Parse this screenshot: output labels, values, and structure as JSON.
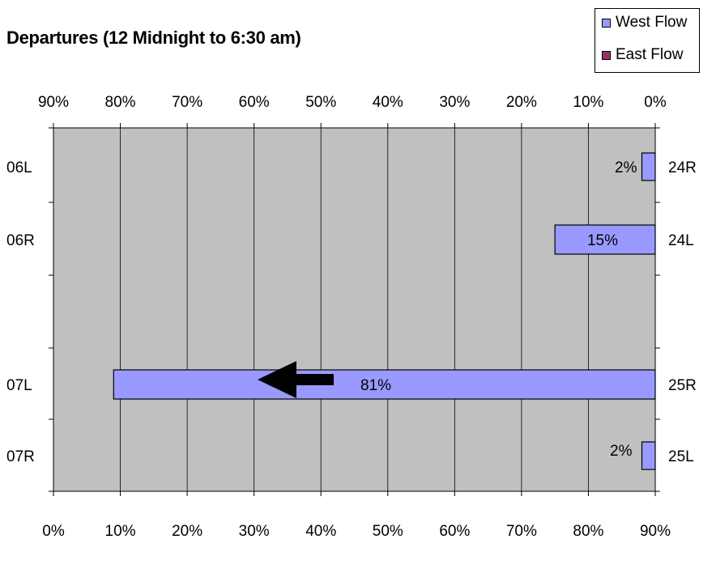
{
  "chart_data": {
    "type": "bar",
    "orientation": "horizontal",
    "title": "Departures (12 Midnight to 6:30 am)",
    "categories": [
      "06L",
      "06R",
      "07L",
      "07R"
    ],
    "categories_right": [
      "24R",
      "24L",
      "25R",
      "25L"
    ],
    "series": [
      {
        "name": "West Flow",
        "color": "#9999ff",
        "values": [
          2,
          15,
          81,
          2
        ],
        "labels": [
          "2%",
          "15%",
          "81%",
          "2%"
        ]
      },
      {
        "name": "East Flow",
        "color": "#993366",
        "values": [
          0,
          0,
          0,
          0
        ]
      }
    ],
    "top_axis": {
      "ticks": [
        "90%",
        "80%",
        "70%",
        "60%",
        "50%",
        "40%",
        "30%",
        "20%",
        "10%",
        "0%"
      ]
    },
    "bottom_axis": {
      "ticks": [
        "0%",
        "10%",
        "20%",
        "30%",
        "40%",
        "50%",
        "60%",
        "70%",
        "80%",
        "90%"
      ]
    },
    "xlim": [
      0,
      90
    ],
    "plot_background": "#c0c0c0",
    "grid": true,
    "legend_position": "top-right",
    "annotation": "arrow-left"
  }
}
